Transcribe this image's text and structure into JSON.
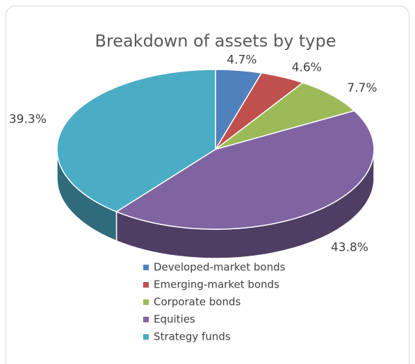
{
  "chart_data": {
    "type": "pie",
    "title": "Breakdown of assets by type",
    "categories": [
      "Developed-market bonds",
      "Emerging-market bonds",
      "Corporate bonds",
      "Equities",
      "Strategy funds"
    ],
    "values": [
      4.7,
      4.6,
      7.7,
      43.8,
      39.3
    ],
    "value_labels": [
      "4.7%",
      "4.6%",
      "7.7%",
      "43.8%",
      "39.3%"
    ],
    "colors": [
      "#4f81bd",
      "#c0504d",
      "#9bbb59",
      "#8064a2",
      "#4bacc6"
    ],
    "legend": "bottom"
  }
}
